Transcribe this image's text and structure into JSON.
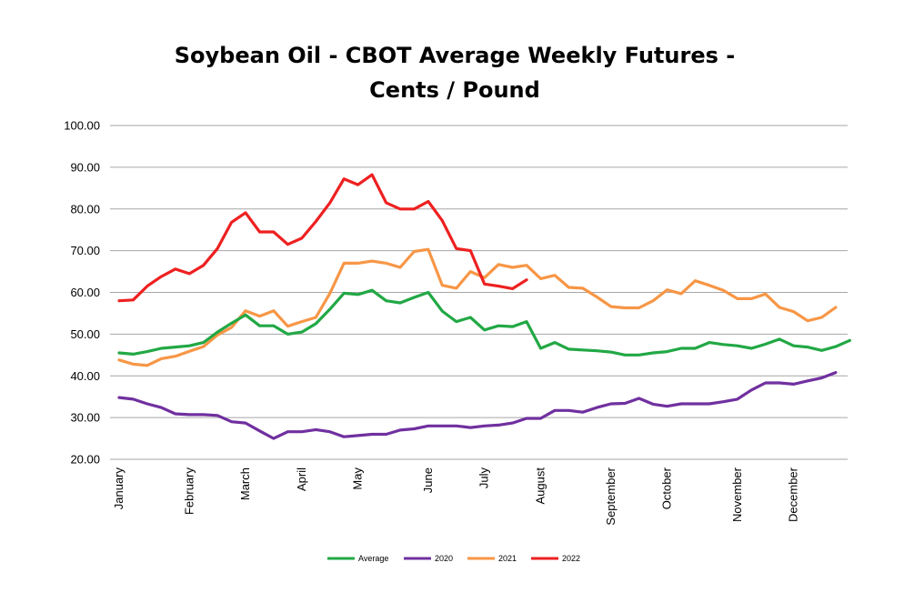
{
  "chart_data": {
    "type": "line",
    "title": "Soybean Oil - CBOT Average Weekly Futures - Cents / Pound",
    "xlabel": "",
    "ylabel": "",
    "ylim": [
      20,
      100
    ],
    "ytick_labels": [
      "20.00",
      "30.00",
      "40.00",
      "50.00",
      "60.00",
      "70.00",
      "80.00",
      "90.00",
      "100.00"
    ],
    "month_labels": [
      "January",
      "February",
      "March",
      "April",
      "May",
      "June",
      "July",
      "August",
      "September",
      "October",
      "November",
      "December"
    ],
    "month_week_index": [
      0,
      5,
      9,
      13,
      17,
      22,
      26,
      30,
      35,
      39,
      44,
      48
    ],
    "grid": true,
    "legend_position": "bottom",
    "series": [
      {
        "name": "Average",
        "color": "#22a845",
        "values": [
          45.5,
          45.2,
          45.8,
          46.6,
          46.9,
          47.2,
          48.0,
          50.5,
          52.6,
          54.6,
          52.0,
          52.0,
          50.0,
          50.5,
          52.5,
          56.0,
          59.8,
          59.5,
          60.5,
          58.0,
          57.5,
          58.8,
          60.0,
          55.5,
          53.0,
          54.0,
          51.0,
          52.0,
          51.8,
          53.0,
          46.6,
          48.0,
          46.4,
          46.2,
          46.0,
          45.7,
          45.0,
          45.0,
          45.5,
          45.8,
          46.6,
          46.6,
          48.0,
          47.5,
          47.2,
          46.6,
          47.6,
          48.8,
          47.2,
          46.9,
          46.1,
          47.0,
          48.5
        ]
      },
      {
        "name": "2020",
        "color": "#7030a0",
        "values": [
          34.8,
          34.4,
          33.3,
          32.4,
          30.9,
          30.7,
          30.7,
          30.5,
          29.0,
          28.7,
          26.8,
          25.0,
          26.6,
          26.6,
          27.1,
          26.6,
          25.4,
          25.7,
          26.0,
          26.0,
          27.0,
          27.3,
          28.0,
          28.0,
          28.0,
          27.6,
          28.0,
          28.2,
          28.7,
          29.8,
          29.8,
          31.7,
          31.7,
          31.3,
          32.4,
          33.3,
          33.4,
          34.6,
          33.2,
          32.7,
          33.3,
          33.3,
          33.3,
          33.8,
          34.4,
          36.6,
          38.3,
          38.3,
          38.0,
          38.8,
          39.5,
          40.8
        ]
      },
      {
        "name": "2021",
        "color": "#f79646",
        "values": [
          43.8,
          42.8,
          42.5,
          44.1,
          44.7,
          45.9,
          47.0,
          49.8,
          51.6,
          55.6,
          54.3,
          55.6,
          51.9,
          53.0,
          54.0,
          59.8,
          67.0,
          67.0,
          67.5,
          67.0,
          66.0,
          69.8,
          70.3,
          61.7,
          61.0,
          65.0,
          63.5,
          66.7,
          66.0,
          66.5,
          63.3,
          64.1,
          61.2,
          61.0,
          58.9,
          56.6,
          56.3,
          56.3,
          58.0,
          60.6,
          59.7,
          62.8,
          61.7,
          60.5,
          58.5,
          58.5,
          59.6,
          56.4,
          55.4,
          53.2,
          54.0,
          56.4
        ]
      },
      {
        "name": "2022",
        "color": "#ee2020",
        "values": [
          58.0,
          58.2,
          61.5,
          63.8,
          65.6,
          64.5,
          66.5,
          70.5,
          76.8,
          79.1,
          74.5,
          74.5,
          71.5,
          73.0,
          77.0,
          81.5,
          87.2,
          85.8,
          88.2,
          81.5,
          80.0,
          80.0,
          81.8,
          77.2,
          70.5,
          70.0,
          62.0,
          61.5,
          60.9,
          63.0
        ]
      }
    ]
  }
}
